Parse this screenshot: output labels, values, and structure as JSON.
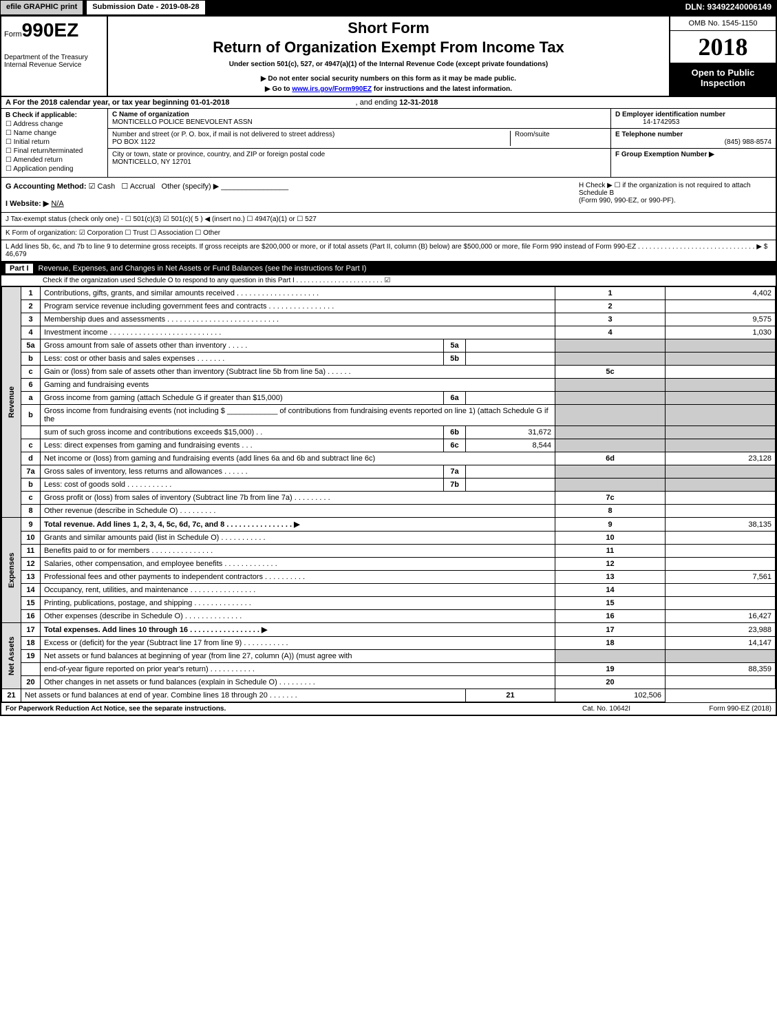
{
  "top_bar": {
    "efile_btn": "efile GRAPHIC print",
    "submission": "Submission Date - 2019-08-28",
    "dln": "DLN: 93492240006149"
  },
  "header": {
    "form_prefix": "Form",
    "form_number": "990EZ",
    "dept_line1": "Department of the Treasury",
    "dept_line2": "Internal Revenue Service",
    "short_form": "Short Form",
    "title": "Return of Organization Exempt From Income Tax",
    "subtitle": "Under section 501(c), 527, or 4947(a)(1) of the Internal Revenue Code (except private foundations)",
    "warning": "▶ Do not enter social security numbers on this form as it may be made public.",
    "goto_prefix": "▶ Go to ",
    "goto_link": "www.irs.gov/Form990EZ",
    "goto_suffix": " for instructions and the latest information.",
    "omb": "OMB No. 1545-1150",
    "year": "2018",
    "open_public": "Open to Public Inspection"
  },
  "section_a": {
    "text_prefix": "A  For the 2018 calendar year, or tax year beginning ",
    "begin_date": "01-01-2018",
    "mid": " , and ending ",
    "end_date": "12-31-2018"
  },
  "section_b": {
    "label": "B  Check if applicable:",
    "opts": [
      "Address change",
      "Name change",
      "Initial return",
      "Final return/terminated",
      "Amended return",
      "Application pending"
    ]
  },
  "section_c": {
    "name_label": "C Name of organization",
    "name": "MONTICELLO POLICE BENEVOLENT ASSN",
    "addr_label": "Number and street (or P. O. box, if mail is not delivered to street address)",
    "addr": "PO BOX 1122",
    "room_label": "Room/suite",
    "city_label": "City or town, state or province, country, and ZIP or foreign postal code",
    "city": "MONTICELLO, NY  12701"
  },
  "section_d": {
    "ein_label": "D Employer identification number",
    "ein": "14-1742953",
    "tel_label": "E Telephone number",
    "tel": "(845) 988-8574",
    "grp_label": "F Group Exemption Number  ▶"
  },
  "section_g": {
    "label": "G Accounting Method:",
    "cash": "Cash",
    "accrual": "Accrual",
    "other": "Other (specify) ▶"
  },
  "section_h": {
    "line1": "H  Check ▶ ☐ if the organization is not required to attach Schedule B",
    "line2": "(Form 990, 990-EZ, or 990-PF)."
  },
  "section_i": {
    "label": "I Website: ▶",
    "value": "N/A"
  },
  "section_j": {
    "text": "J Tax-exempt status (check only one) - ☐ 501(c)(3)  ☑ 501(c)( 5 ) ◀ (insert no.)  ☐ 4947(a)(1) or  ☐ 527"
  },
  "section_k": {
    "text": "K Form of organization:  ☑ Corporation   ☐ Trust   ☐ Association   ☐ Other"
  },
  "section_l": {
    "text": "L Add lines 5b, 6c, and 7b to line 9 to determine gross receipts. If gross receipts are $200,000 or more, or if total assets (Part II, column (B) below) are $500,000 or more, file Form 990 instead of Form 990-EZ  . . . . . . . . . . . . . . . . . . . . . . . . . . . . . . .   ▶ $ 46,679"
  },
  "part1": {
    "label": "Part I",
    "title": "Revenue, Expenses, and Changes in Net Assets or Fund Balances (see the instructions for Part I)",
    "subtext": "Check if the organization used Schedule O to respond to any question in this Part I . . . . . . . . . . . . . . . . . . . . . . .  ☑",
    "vlabels": {
      "revenue": "Revenue",
      "expenses": "Expenses",
      "netassets": "Net Assets"
    },
    "rows": [
      {
        "n": "1",
        "label": "Contributions, gifts, grants, and similar amounts received  . . . . . . . . . . . . . . . . . . . .",
        "ln": "1",
        "amt": "4,402"
      },
      {
        "n": "2",
        "label": "Program service revenue including government fees and contracts . . . . . . . . . . . . . . . .",
        "ln": "2",
        "amt": ""
      },
      {
        "n": "3",
        "label": "Membership dues and assessments . . . . . . . . . . . . . . . . . . . . . . . . . . .",
        "ln": "3",
        "amt": "9,575"
      },
      {
        "n": "4",
        "label": "Investment income . . . . . . . . . . . . . . . . . . . . . . . . . . .",
        "ln": "4",
        "amt": "1,030"
      },
      {
        "n": "5a",
        "label": "Gross amount from sale of assets other than inventory  . . . . .",
        "subn": "5a",
        "subv": ""
      },
      {
        "n": "b",
        "label": "Less: cost or other basis and sales expenses . . . . . . .",
        "subn": "5b",
        "subv": ""
      },
      {
        "n": "c",
        "label": "Gain or (loss) from sale of assets other than inventory (Subtract line 5b from line 5a)           . . . . . .",
        "ln": "5c",
        "amt": ""
      },
      {
        "n": "6",
        "label": "Gaming and fundraising events",
        "shaded_right": true
      },
      {
        "n": "a",
        "label": "Gross income from gaming (attach Schedule G if greater than $15,000)",
        "subn": "6a",
        "subv": ""
      },
      {
        "n": "b",
        "label": "Gross income from fundraising events (not including $ ____________ of contributions from fundraising events reported on line 1) (attach Schedule G if the",
        "shaded_right": true
      },
      {
        "n": "",
        "label": "sum of such gross income and contributions exceeds $15,000)           . .",
        "subn": "6b",
        "subv": "31,672"
      },
      {
        "n": "c",
        "label": "Less: direct expenses from gaming and fundraising events           . . .",
        "subn": "6c",
        "subv": "8,544"
      },
      {
        "n": "d",
        "label": "Net income or (loss) from gaming and fundraising events (add lines 6a and 6b and subtract line 6c)",
        "ln": "6d",
        "amt": "23,128"
      },
      {
        "n": "7a",
        "label": "Gross sales of inventory, less returns and allowances           . . . . . .",
        "subn": "7a",
        "subv": ""
      },
      {
        "n": "b",
        "label": "Less: cost of goods sold                          . . . . . . . . . . .",
        "subn": "7b",
        "subv": ""
      },
      {
        "n": "c",
        "label": "Gross profit or (loss) from sales of inventory (Subtract line 7b from line 7a)           . . . . . . . . .",
        "ln": "7c",
        "amt": ""
      },
      {
        "n": "8",
        "label": "Other revenue (describe in Schedule O)                          . . . . . . . . .",
        "ln": "8",
        "amt": ""
      },
      {
        "n": "9",
        "label": "Total revenue. Add lines 1, 2, 3, 4, 5c, 6d, 7c, and 8           . . . . . . . . . . . . . . . .  ▶",
        "ln": "9",
        "amt": "38,135",
        "bold": true
      },
      {
        "n": "10",
        "label": "Grants and similar amounts paid (list in Schedule O)           . . . . . . . . . . .",
        "ln": "10",
        "amt": ""
      },
      {
        "n": "11",
        "label": "Benefits paid to or for members           . . . . . . . . . . . . . . .",
        "ln": "11",
        "amt": ""
      },
      {
        "n": "12",
        "label": "Salaries, other compensation, and employee benefits           . . . . . . . . . . . . .",
        "ln": "12",
        "amt": ""
      },
      {
        "n": "13",
        "label": "Professional fees and other payments to independent contractors           . . . . . . . . . .",
        "ln": "13",
        "amt": "7,561"
      },
      {
        "n": "14",
        "label": "Occupancy, rent, utilities, and maintenance           . . . . . . . . . . . . . . . .",
        "ln": "14",
        "amt": ""
      },
      {
        "n": "15",
        "label": "Printing, publications, postage, and shipping           . . . . . . . . . . . . . .",
        "ln": "15",
        "amt": ""
      },
      {
        "n": "16",
        "label": "Other expenses (describe in Schedule O)           . . . . . . . . . . . . . .",
        "ln": "16",
        "amt": "16,427"
      },
      {
        "n": "17",
        "label": "Total expenses. Add lines 10 through 16           . . . . . . . . . . . . . . . . .  ▶",
        "ln": "17",
        "amt": "23,988",
        "bold": true
      },
      {
        "n": "18",
        "label": "Excess or (deficit) for the year (Subtract line 17 from line 9)           . . . . . . . . . . .",
        "ln": "18",
        "amt": "14,147"
      },
      {
        "n": "19",
        "label": "Net assets or fund balances at beginning of year (from line 27, column (A)) (must agree with",
        "shaded_right": true
      },
      {
        "n": "",
        "label": "end-of-year figure reported on prior year's return)           . . . . . . . . . . .",
        "ln": "19",
        "amt": "88,359"
      },
      {
        "n": "20",
        "label": "Other changes in net assets or fund balances (explain in Schedule O)           . . . . . . . . .",
        "ln": "20",
        "amt": ""
      },
      {
        "n": "21",
        "label": "Net assets or fund balances at end of year. Combine lines 18 through 20           . . . . . . .",
        "ln": "21",
        "amt": "102,506"
      }
    ]
  },
  "footer": {
    "left": "For Paperwork Reduction Act Notice, see the separate instructions.",
    "center": "Cat. No. 10642I",
    "right": "Form 990-EZ (2018)"
  }
}
